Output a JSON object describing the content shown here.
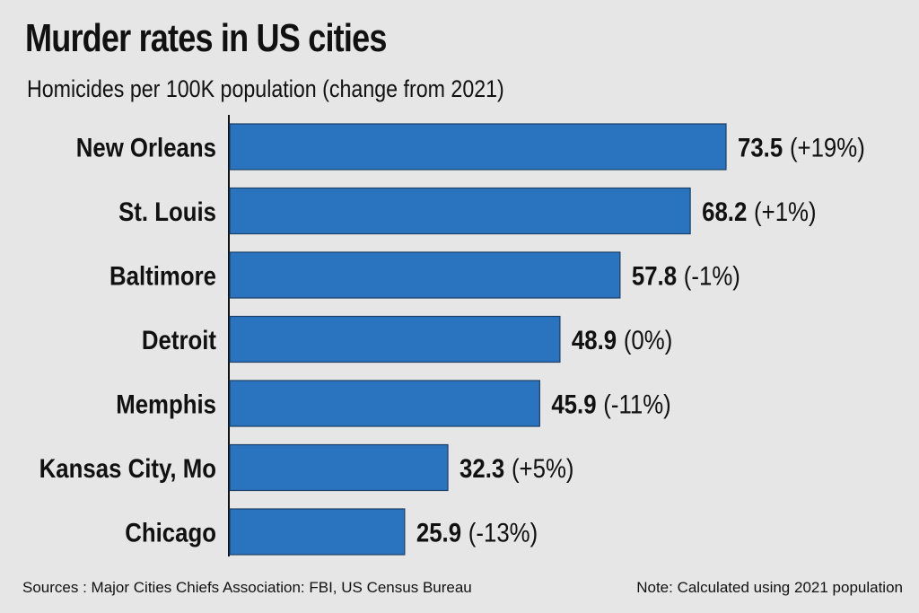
{
  "chart_data": {
    "type": "bar",
    "orientation": "horizontal",
    "title": "Murder rates in US cities",
    "subtitle": "Homicides per 100K population (change from 2021)",
    "categories": [
      "New Orleans",
      "St. Louis",
      "Baltimore",
      "Detroit",
      "Memphis",
      "Kansas City, Mo",
      "Chicago"
    ],
    "values": [
      73.5,
      68.2,
      57.8,
      48.9,
      45.9,
      32.3,
      25.9
    ],
    "value_labels": [
      "73.5",
      "68.2",
      "57.8",
      "48.9",
      "45.9",
      "32.3",
      "25.9"
    ],
    "changes": [
      "(+19%)",
      "(+1%)",
      "(-1%)",
      "(0%)",
      "(-11%)",
      "(+5%)",
      "(-13%)"
    ],
    "xlim": [
      0,
      73.5
    ],
    "xlabel": "",
    "ylabel": "",
    "grid": false,
    "bar_color": "#2a74bf",
    "bar_edge_color": "#1b3f66"
  },
  "footer": {
    "sources": "Sources : Major Cities Chiefs Association: FBI, US Census Bureau",
    "note": "Note: Calculated using 2021 population"
  },
  "colors": {
    "background": "#e6e6e6",
    "text": "#111111"
  }
}
